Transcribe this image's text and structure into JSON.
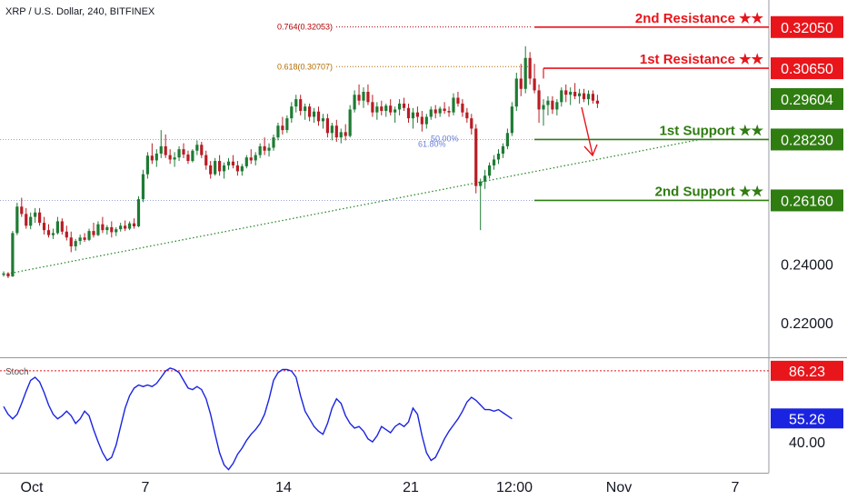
{
  "header": {
    "title": "XRP / U.S. Dollar, 240, BITFINEX"
  },
  "colors": {
    "up": "#1e7b34",
    "down": "#b81d24",
    "resistance": "#e8151b",
    "support": "#2f7d11",
    "current": "#2f7d11",
    "stoch": "#1a24e0",
    "stoch_box": "#1a24e0",
    "trendline": "#2e8b2e",
    "fib_764": "#b00000",
    "fib_618": "#b06a00",
    "fib_50": "#6a7fd6",
    "fib_line": "#9aa7d8",
    "axis_text": "#131722"
  },
  "chart_data": [
    {
      "type": "candlestick",
      "title": "XRP / U.S. Dollar, 240, BITFINEX",
      "ylim": [
        0.2083,
        0.3297
      ],
      "y_ticks": [
        "0.24000",
        "0.22000"
      ],
      "x_ticks": [
        "Oct",
        "7",
        "14",
        "21",
        "12:00",
        "Nov",
        "7"
      ],
      "current_price": "0.29604",
      "levels": [
        {
          "label": "2nd Resistance ★★",
          "price": "0.32050",
          "value": 0.3205,
          "kind": "resistance"
        },
        {
          "label": "1st Resistance ★★",
          "price": "0.30650",
          "value": 0.3065,
          "kind": "resistance"
        },
        {
          "label": "1st Support ★★",
          "price": "0.28230",
          "value": 0.2823,
          "kind": "support"
        },
        {
          "label": "2nd Support ★★",
          "price": "0.26160",
          "value": 0.2616,
          "kind": "support"
        }
      ],
      "fib": [
        {
          "label": "0.764(0.32053)",
          "value": 0.32053
        },
        {
          "label": "0.618(0.30707)",
          "value": 0.30707
        },
        {
          "label": "50.00%",
          "value": 0.2823
        },
        {
          "label": "61.80%",
          "value": 0.2823
        }
      ],
      "trendline": {
        "from": {
          "x": 0,
          "value": 0.2364
        },
        "to": {
          "x": 25.4,
          "value": 0.2823
        }
      },
      "candles": [
        [
          0.2363,
          0.2375,
          0.2357,
          0.2368
        ],
        [
          0.2368,
          0.2372,
          0.2352,
          0.2358
        ],
        [
          0.2358,
          0.2512,
          0.2356,
          0.2505
        ],
        [
          0.2505,
          0.2608,
          0.2498,
          0.2595
        ],
        [
          0.2595,
          0.2625,
          0.256,
          0.257
        ],
        [
          0.257,
          0.259,
          0.252,
          0.253
        ],
        [
          0.253,
          0.2575,
          0.2518,
          0.256
        ],
        [
          0.256,
          0.259,
          0.254,
          0.2575
        ],
        [
          0.2575,
          0.259,
          0.253,
          0.254
        ],
        [
          0.254,
          0.256,
          0.25,
          0.2515
        ],
        [
          0.2515,
          0.2535,
          0.249,
          0.2498
        ],
        [
          0.2498,
          0.252,
          0.2485,
          0.2505
        ],
        [
          0.2505,
          0.256,
          0.25,
          0.2545
        ],
        [
          0.2545,
          0.2555,
          0.25,
          0.251
        ],
        [
          0.251,
          0.253,
          0.248,
          0.249
        ],
        [
          0.249,
          0.251,
          0.244,
          0.246
        ],
        [
          0.246,
          0.2485,
          0.2445,
          0.2478
        ],
        [
          0.2478,
          0.25,
          0.2465,
          0.249
        ],
        [
          0.249,
          0.2505,
          0.2475,
          0.2482
        ],
        [
          0.2482,
          0.252,
          0.2478,
          0.2512
        ],
        [
          0.2512,
          0.254,
          0.249,
          0.2498
        ],
        [
          0.2498,
          0.2545,
          0.2495,
          0.2535
        ],
        [
          0.2535,
          0.256,
          0.2505,
          0.2515
        ],
        [
          0.2515,
          0.2532,
          0.25,
          0.2525
        ],
        [
          0.2525,
          0.2545,
          0.249,
          0.2508
        ],
        [
          0.2508,
          0.2525,
          0.2495,
          0.2518
        ],
        [
          0.2518,
          0.254,
          0.251,
          0.253
        ],
        [
          0.253,
          0.2548,
          0.2512,
          0.252
        ],
        [
          0.252,
          0.2545,
          0.2515,
          0.2538
        ],
        [
          0.2538,
          0.2555,
          0.252,
          0.2528
        ],
        [
          0.2528,
          0.263,
          0.2525,
          0.262
        ],
        [
          0.262,
          0.272,
          0.261,
          0.2705
        ],
        [
          0.2705,
          0.278,
          0.269,
          0.2768
        ],
        [
          0.2768,
          0.281,
          0.274,
          0.2752
        ],
        [
          0.2752,
          0.279,
          0.273,
          0.2775
        ],
        [
          0.2775,
          0.2855,
          0.276,
          0.28
        ],
        [
          0.28,
          0.284,
          0.276,
          0.277
        ],
        [
          0.277,
          0.279,
          0.274,
          0.2755
        ],
        [
          0.2755,
          0.278,
          0.273,
          0.2762
        ],
        [
          0.2762,
          0.28,
          0.275,
          0.279
        ],
        [
          0.279,
          0.281,
          0.276,
          0.2772
        ],
        [
          0.2772,
          0.2785,
          0.274,
          0.275
        ],
        [
          0.275,
          0.279,
          0.2745,
          0.2785
        ],
        [
          0.2785,
          0.282,
          0.277,
          0.2805
        ],
        [
          0.2805,
          0.2815,
          0.276,
          0.277
        ],
        [
          0.277,
          0.2785,
          0.272,
          0.2735
        ],
        [
          0.2735,
          0.275,
          0.269,
          0.2705
        ],
        [
          0.2705,
          0.276,
          0.27,
          0.275
        ],
        [
          0.275,
          0.277,
          0.27,
          0.2715
        ],
        [
          0.2715,
          0.2745,
          0.269,
          0.2735
        ],
        [
          0.2735,
          0.276,
          0.272,
          0.2748
        ],
        [
          0.2748,
          0.277,
          0.2725,
          0.2735
        ],
        [
          0.2735,
          0.275,
          0.27,
          0.2715
        ],
        [
          0.2715,
          0.274,
          0.27,
          0.2732
        ],
        [
          0.2732,
          0.277,
          0.2725,
          0.2762
        ],
        [
          0.2762,
          0.279,
          0.274,
          0.2752
        ],
        [
          0.2752,
          0.278,
          0.2735,
          0.277
        ],
        [
          0.277,
          0.281,
          0.276,
          0.28
        ],
        [
          0.28,
          0.283,
          0.277,
          0.2785
        ],
        [
          0.2785,
          0.281,
          0.2765,
          0.2795
        ],
        [
          0.2795,
          0.284,
          0.2785,
          0.283
        ],
        [
          0.283,
          0.288,
          0.282,
          0.287
        ],
        [
          0.287,
          0.29,
          0.284,
          0.2855
        ],
        [
          0.2855,
          0.2905,
          0.2845,
          0.2895
        ],
        [
          0.2895,
          0.295,
          0.288,
          0.2935
        ],
        [
          0.2935,
          0.2975,
          0.2915,
          0.296
        ],
        [
          0.296,
          0.2975,
          0.2905,
          0.292
        ],
        [
          0.292,
          0.2945,
          0.289,
          0.2935
        ],
        [
          0.2935,
          0.2945,
          0.2885,
          0.29
        ],
        [
          0.29,
          0.293,
          0.288,
          0.2918
        ],
        [
          0.2918,
          0.2935,
          0.287,
          0.2885
        ],
        [
          0.2885,
          0.291,
          0.286,
          0.2895
        ],
        [
          0.2895,
          0.291,
          0.283,
          0.2845
        ],
        [
          0.2845,
          0.288,
          0.282,
          0.287
        ],
        [
          0.287,
          0.289,
          0.2815,
          0.283
        ],
        [
          0.283,
          0.286,
          0.281,
          0.2848
        ],
        [
          0.2848,
          0.2875,
          0.282,
          0.2835
        ],
        [
          0.2835,
          0.294,
          0.283,
          0.2925
        ],
        [
          0.2925,
          0.299,
          0.2915,
          0.2975
        ],
        [
          0.2975,
          0.301,
          0.294,
          0.2955
        ],
        [
          0.2955,
          0.3,
          0.293,
          0.2985
        ],
        [
          0.2985,
          0.301,
          0.294,
          0.295
        ],
        [
          0.295,
          0.2975,
          0.29,
          0.2915
        ],
        [
          0.2915,
          0.295,
          0.289,
          0.2935
        ],
        [
          0.2935,
          0.2955,
          0.2905,
          0.292
        ],
        [
          0.292,
          0.2945,
          0.29,
          0.2938
        ],
        [
          0.2938,
          0.296,
          0.2905,
          0.2915
        ],
        [
          0.2915,
          0.2935,
          0.288,
          0.2925
        ],
        [
          0.2925,
          0.296,
          0.2905,
          0.2945
        ],
        [
          0.2945,
          0.2965,
          0.292,
          0.293
        ],
        [
          0.293,
          0.2945,
          0.288,
          0.2895
        ],
        [
          0.2895,
          0.293,
          0.286,
          0.2915
        ],
        [
          0.2915,
          0.2935,
          0.288,
          0.29
        ],
        [
          0.29,
          0.292,
          0.285,
          0.2875
        ],
        [
          0.2875,
          0.291,
          0.286,
          0.29
        ],
        [
          0.29,
          0.2935,
          0.289,
          0.2925
        ],
        [
          0.2925,
          0.294,
          0.2895,
          0.2912
        ],
        [
          0.2912,
          0.2935,
          0.29,
          0.2928
        ],
        [
          0.2928,
          0.295,
          0.291,
          0.292
        ],
        [
          0.292,
          0.2935,
          0.29,
          0.2915
        ],
        [
          0.2915,
          0.298,
          0.2905,
          0.2965
        ],
        [
          0.2965,
          0.2985,
          0.2935,
          0.2945
        ],
        [
          0.2945,
          0.296,
          0.29,
          0.2915
        ],
        [
          0.2915,
          0.293,
          0.288,
          0.2895
        ],
        [
          0.2895,
          0.291,
          0.284,
          0.286
        ],
        [
          0.286,
          0.2875,
          0.264,
          0.2665
        ],
        [
          0.2665,
          0.269,
          0.2515,
          0.268
        ],
        [
          0.268,
          0.272,
          0.2655,
          0.27
        ],
        [
          0.27,
          0.2745,
          0.269,
          0.2735
        ],
        [
          0.2735,
          0.277,
          0.272,
          0.2755
        ],
        [
          0.2755,
          0.279,
          0.274,
          0.2775
        ],
        [
          0.2775,
          0.281,
          0.276,
          0.28
        ],
        [
          0.28,
          0.286,
          0.279,
          0.2845
        ],
        [
          0.2845,
          0.295,
          0.2835,
          0.2935
        ],
        [
          0.2935,
          0.305,
          0.292,
          0.303
        ],
        [
          0.303,
          0.308,
          0.297,
          0.2995
        ],
        [
          0.2995,
          0.314,
          0.298,
          0.31
        ],
        [
          0.31,
          0.312,
          0.301,
          0.303
        ],
        [
          0.303,
          0.308,
          0.298,
          0.299
        ],
        [
          0.299,
          0.301,
          0.288,
          0.2925
        ],
        [
          0.2925,
          0.296,
          0.287,
          0.294
        ],
        [
          0.294,
          0.297,
          0.2905,
          0.2955
        ],
        [
          0.2955,
          0.297,
          0.291,
          0.2925
        ],
        [
          0.2925,
          0.296,
          0.2905,
          0.295
        ],
        [
          0.295,
          0.3,
          0.2935,
          0.299
        ],
        [
          0.299,
          0.301,
          0.295,
          0.2975
        ],
        [
          0.2975,
          0.3,
          0.294,
          0.2985
        ],
        [
          0.2985,
          0.3015,
          0.296,
          0.297
        ],
        [
          0.297,
          0.2995,
          0.2945,
          0.298
        ],
        [
          0.298,
          0.2995,
          0.295,
          0.296
        ],
        [
          0.296,
          0.299,
          0.294,
          0.2978
        ],
        [
          0.2978,
          0.299,
          0.2945,
          0.2955
        ],
        [
          0.2955,
          0.2975,
          0.293,
          0.2945
        ]
      ]
    },
    {
      "type": "line",
      "title": "Stoch",
      "ylim": [
        20,
        95
      ],
      "y_ticks": [
        "40.00"
      ],
      "overbought_label": "86.23",
      "overbought_value": 86.23,
      "current_label": "55.26",
      "values": [
        63,
        58,
        55,
        58,
        65,
        73,
        80,
        82,
        79,
        72,
        64,
        58,
        55,
        57,
        60,
        57,
        52,
        55,
        60,
        57,
        48,
        40,
        33,
        28,
        30,
        38,
        50,
        62,
        70,
        75,
        77,
        76,
        77,
        76,
        78,
        82,
        86,
        88,
        87,
        85,
        80,
        75,
        74,
        76,
        74,
        68,
        58,
        45,
        33,
        25,
        22,
        26,
        32,
        36,
        41,
        45,
        48,
        52,
        58,
        68,
        80,
        85,
        87,
        87,
        86,
        82,
        70,
        60,
        55,
        50,
        47,
        45,
        52,
        62,
        68,
        65,
        57,
        52,
        49,
        50,
        47,
        42,
        40,
        44,
        50,
        48,
        46,
        50,
        52,
        50,
        53,
        62,
        58,
        44,
        33,
        28,
        30,
        36,
        42,
        47,
        51,
        55,
        60,
        66,
        69,
        67,
        64,
        61,
        61,
        60,
        61,
        59,
        57,
        55
      ]
    }
  ],
  "annotations": {
    "arrow_icon": "red-down-arrow-icon"
  }
}
